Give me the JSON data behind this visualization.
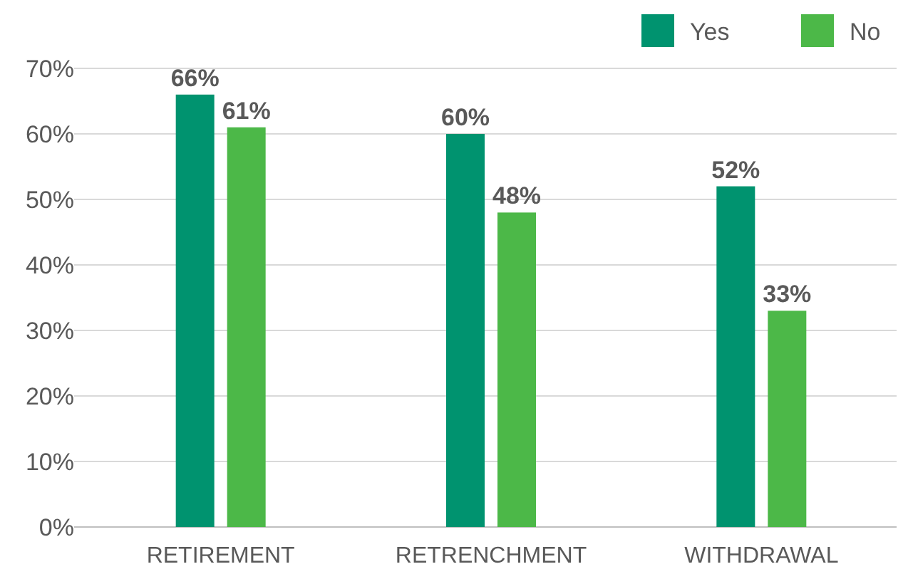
{
  "chart_data": {
    "type": "bar",
    "categories": [
      "RETIREMENT",
      "RETRENCHMENT",
      "WITHDRAWAL"
    ],
    "series": [
      {
        "name": "Yes",
        "color": "#00936f",
        "values": [
          66,
          60,
          52
        ],
        "value_labels": [
          "66%",
          "60%",
          "52%"
        ]
      },
      {
        "name": "No",
        "color": "#4cb848",
        "values": [
          61,
          48,
          33
        ],
        "value_labels": [
          "61%",
          "48%",
          "33%"
        ]
      }
    ],
    "ylim": [
      0,
      70
    ],
    "yticks": [
      {
        "value": 0,
        "label": "0%"
      },
      {
        "value": 10,
        "label": "10%"
      },
      {
        "value": 20,
        "label": "20%"
      },
      {
        "value": 30,
        "label": "30%"
      },
      {
        "value": 40,
        "label": "40%"
      },
      {
        "value": 50,
        "label": "50%"
      },
      {
        "value": 60,
        "label": "60%"
      },
      {
        "value": 70,
        "label": "70%"
      }
    ],
    "grid": "y",
    "legend": "top right"
  }
}
